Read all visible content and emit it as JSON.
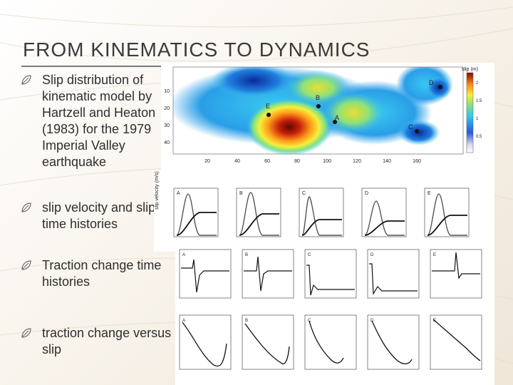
{
  "slide": {
    "title": "FROM KINEMATICS TO DYNAMICS",
    "bullets": [
      "Slip distribution of kinematic model by Hartzell and Heaton (1983) for the 1979 Imperial Valley earthquake",
      "slip velocity and slip time histories",
      "Traction change time histories",
      "traction change versus slip"
    ],
    "colors": {
      "title": "#3a3a3a",
      "text": "#2e2e2e",
      "accent": "#7a7a7a"
    }
  },
  "figure": {
    "slip_map": {
      "colorbar_label": "slip (m)",
      "colorbar_ticks": [
        "2",
        "1.5",
        "1",
        "0.5"
      ],
      "y_ticks": [
        "10",
        "20",
        "30",
        "40"
      ],
      "x_ticks": [
        "20",
        "40",
        "60",
        "80",
        "100",
        "120",
        "140",
        "160"
      ],
      "stations": [
        "A",
        "B",
        "C",
        "D",
        "E"
      ]
    },
    "velocity_panels": [
      "A",
      "B",
      "C",
      "D",
      "E"
    ],
    "traction_panels": [
      "A",
      "B",
      "C",
      "D",
      "E"
    ],
    "slip_panels": [
      "A",
      "B",
      "C",
      "D",
      "E"
    ]
  }
}
